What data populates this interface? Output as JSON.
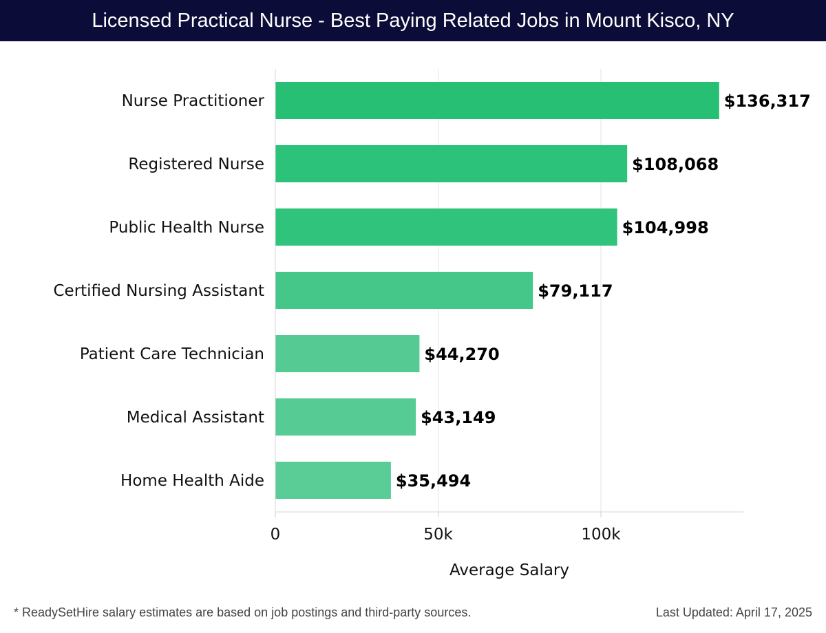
{
  "header": {
    "title": "Licensed Practical Nurse - Best Paying Related Jobs in Mount Kisco, NY"
  },
  "footer": {
    "note": "* ReadySetHire salary estimates are based on job postings and third-party sources.",
    "updated": "Last Updated: April 17, 2025"
  },
  "chart_data": {
    "type": "bar",
    "orientation": "horizontal",
    "title": "Licensed Practical Nurse - Best Paying Related Jobs in Mount Kisco, NY",
    "xlabel": "Average Salary",
    "ylabel": "",
    "xlim": [
      0,
      143000
    ],
    "xticks": [
      0,
      50000,
      100000
    ],
    "xtick_labels": [
      "0",
      "50k",
      "100k"
    ],
    "grid": "vertical",
    "categories": [
      "Nurse Practitioner",
      "Registered Nurse",
      "Public Health Nurse",
      "Certified Nursing Assistant",
      "Patient Care Technician",
      "Medical Assistant",
      "Home Health Aide"
    ],
    "values": [
      136317,
      108068,
      104998,
      79117,
      44270,
      43149,
      35494
    ],
    "value_labels": [
      "$136,317",
      "$108,068",
      "$104,998",
      "$79,117",
      "$44,270",
      "$43,149",
      "$35,494"
    ],
    "colors": [
      "#27bf73",
      "#2dc279",
      "#30c37b",
      "#44c788",
      "#55cb93",
      "#56cc94",
      "#5acd97"
    ]
  }
}
